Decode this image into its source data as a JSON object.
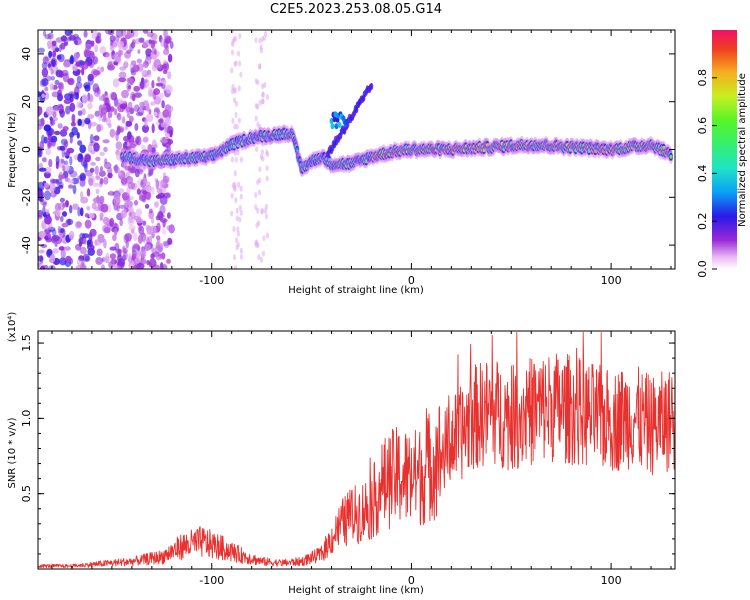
{
  "title": "C2E5.2023.253.08.05.G14",
  "chart_data": [
    {
      "type": "heatmap",
      "xlabel": "Height of straight line (km)",
      "ylabel": "Frequency (Hz)",
      "xlim": [
        -187,
        132
      ],
      "ylim": [
        -50,
        50
      ],
      "xticks": [
        -100,
        0,
        100
      ],
      "yticks": [
        -40,
        -20,
        0,
        20,
        40
      ],
      "colorbar": {
        "label": "Normalized spectral amplitude",
        "range": [
          0.0,
          1.0
        ],
        "ticks": [
          "0.0",
          "0.2",
          "0.4",
          "0.6",
          "0.8"
        ]
      },
      "ridge": {
        "x": [
          -145,
          -130,
          -115,
          -100,
          -90,
          -80,
          -70,
          -60,
          -55,
          -50,
          -45,
          -40,
          -30,
          -20,
          -10,
          0,
          20,
          40,
          60,
          80,
          100,
          120,
          130
        ],
        "y": [
          -3,
          -5,
          -4,
          -3,
          2,
          5,
          6,
          7,
          -8,
          -5,
          -3,
          -6,
          -6,
          -3,
          -1,
          0,
          0,
          1,
          2,
          1,
          0,
          2,
          -2
        ]
      },
      "noise_region_x": [
        -187,
        -120
      ]
    },
    {
      "type": "line",
      "xlabel": "Height of straight line (km)",
      "ylabel": "SNR (10 * v/v)",
      "yscale_label": "(x10⁴)",
      "xlim": [
        -187,
        132
      ],
      "ylim": [
        0,
        1.58
      ],
      "xticks": [
        -100,
        0,
        100
      ],
      "yticks": [
        0.5,
        1.0,
        1.5
      ],
      "ytick_labels": [
        "0.5",
        "1.0",
        "1.5"
      ],
      "color": "#e8312e",
      "series": [
        {
          "x": [
            -187,
            -170,
            -150,
            -140,
            -125,
            -115,
            -105,
            -95,
            -85,
            -75,
            -65,
            -55,
            -45,
            -40,
            -35,
            -30,
            -25,
            -20,
            -15,
            -10,
            -5,
            0,
            5,
            10,
            15,
            20,
            25,
            30,
            40,
            50,
            60,
            70,
            80,
            90,
            100,
            110,
            120,
            132
          ],
          "y": [
            0.02,
            0.02,
            0.04,
            0.05,
            0.08,
            0.15,
            0.18,
            0.14,
            0.09,
            0.05,
            0.04,
            0.05,
            0.1,
            0.2,
            0.3,
            0.35,
            0.38,
            0.42,
            0.55,
            0.6,
            0.62,
            0.6,
            0.62,
            0.7,
            0.75,
            0.85,
            0.9,
            1.0,
            1.05,
            1.0,
            1.05,
            1.08,
            1.06,
            1.02,
            0.98,
            1.02,
            0.95,
            1.0
          ]
        }
      ]
    }
  ]
}
